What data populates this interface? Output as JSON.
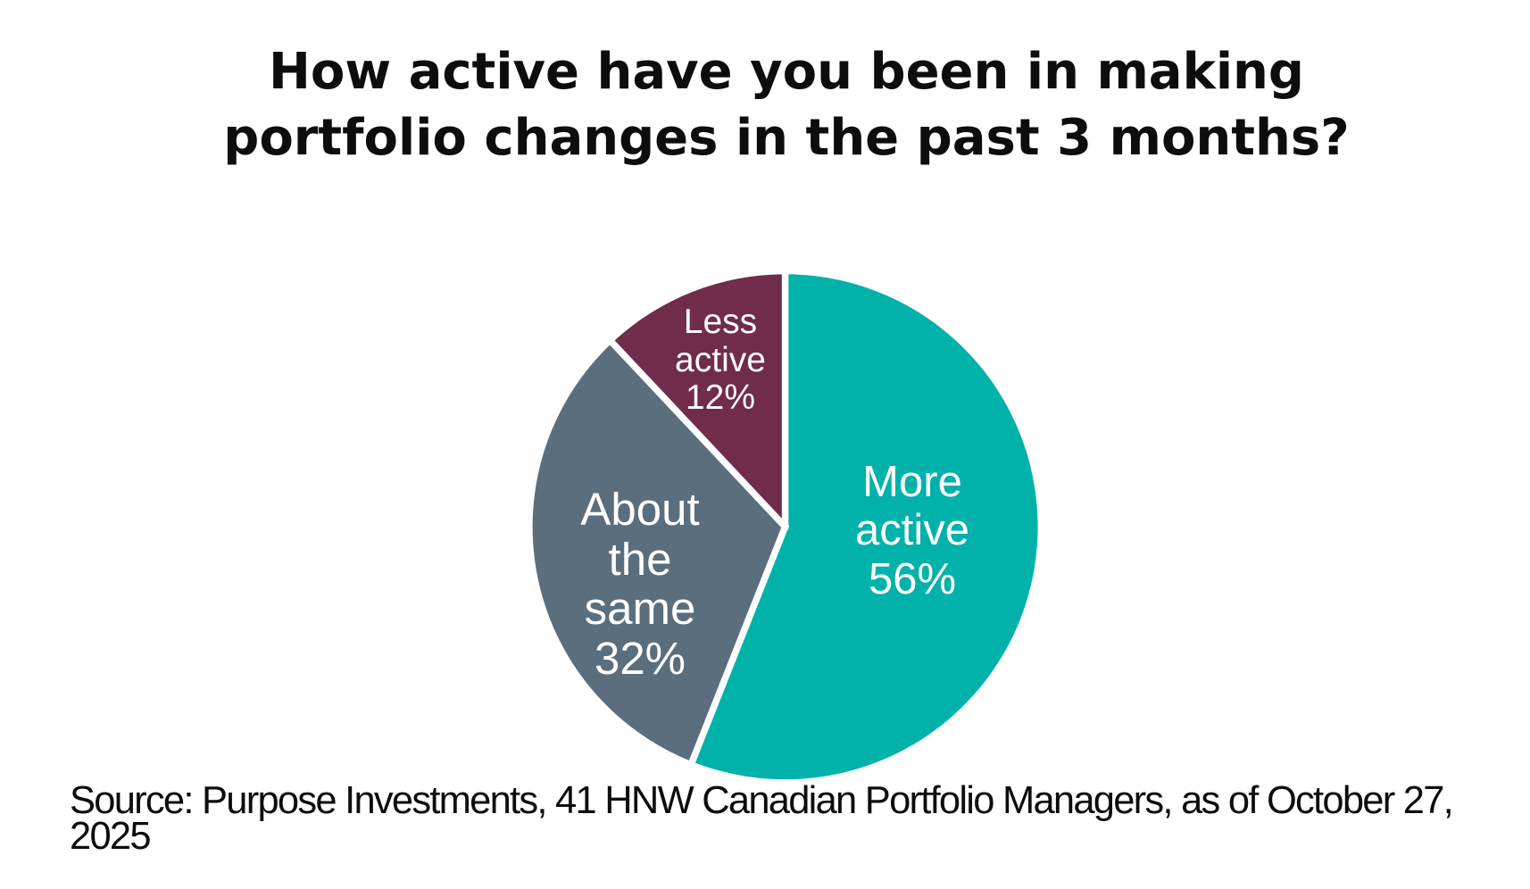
{
  "title": {
    "lines": [
      "How active have you been in making",
      "portfolio changes in the past 3 months?"
    ]
  },
  "chart_data": {
    "type": "pie",
    "title": "How active have you been in making portfolio changes in the past 3 months?",
    "categories": [
      "More active",
      "About the same",
      "Less active"
    ],
    "values": [
      56,
      32,
      12
    ],
    "unit": "%",
    "slice_colors": [
      "#00B2A9",
      "#5B6E7D",
      "#702C49"
    ],
    "label_color": "#FFFFFF",
    "separator_color": "#FFFFFF",
    "start_angle": "12 o'clock",
    "direction": "clockwise",
    "legend_position": "none",
    "labels_inside_slices": true
  },
  "slice_labels": {
    "more_active": {
      "line1": "More",
      "line2": "active",
      "line3": "56%"
    },
    "about_the_same": {
      "line1": "About",
      "line2": "the",
      "line3": "same",
      "line4": "32%"
    },
    "less_active": {
      "line1": "Less",
      "line2": "active",
      "line3": "12%"
    }
  },
  "source_note": {
    "text": "Source: Purpose Investments, 41 HNW Canadian Portfolio Managers, as of October 27, 2025"
  }
}
